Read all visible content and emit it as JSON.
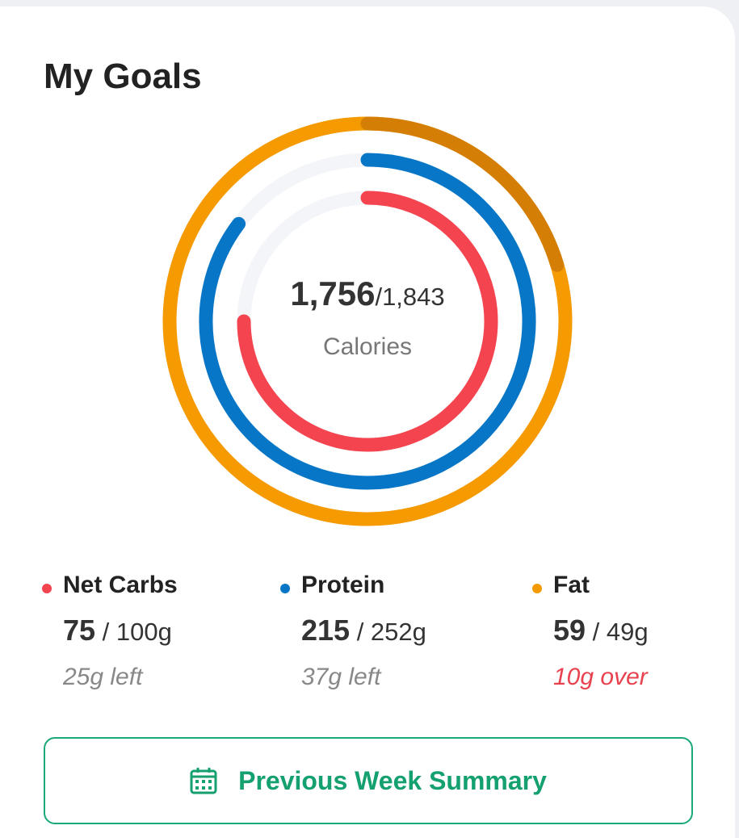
{
  "title": "My Goals",
  "calories": {
    "consumed": {
      "value": 1756,
      "label": "1,756"
    },
    "goal": {
      "value": 1843,
      "label": "/1,843"
    },
    "label": "Calories"
  },
  "track_color": "#f3f5f8",
  "macros": [
    {
      "name": "Net Carbs",
      "color": "#f4444f",
      "consumed": 75,
      "goal": 100,
      "goal_label": "/ 100g",
      "remaining_label": "25g left"
    },
    {
      "name": "Protein",
      "color": "#0876c6",
      "consumed": 215,
      "goal": 252,
      "goal_label": "/ 252g",
      "remaining_label": "37g left"
    },
    {
      "name": "Fat",
      "color": "#f59a00",
      "over_color": "#d47e06",
      "consumed": 59,
      "goal": 49,
      "goal_label": "/ 49g",
      "remaining_label": "10g over"
    }
  ],
  "button": "Previous Week Summary"
}
